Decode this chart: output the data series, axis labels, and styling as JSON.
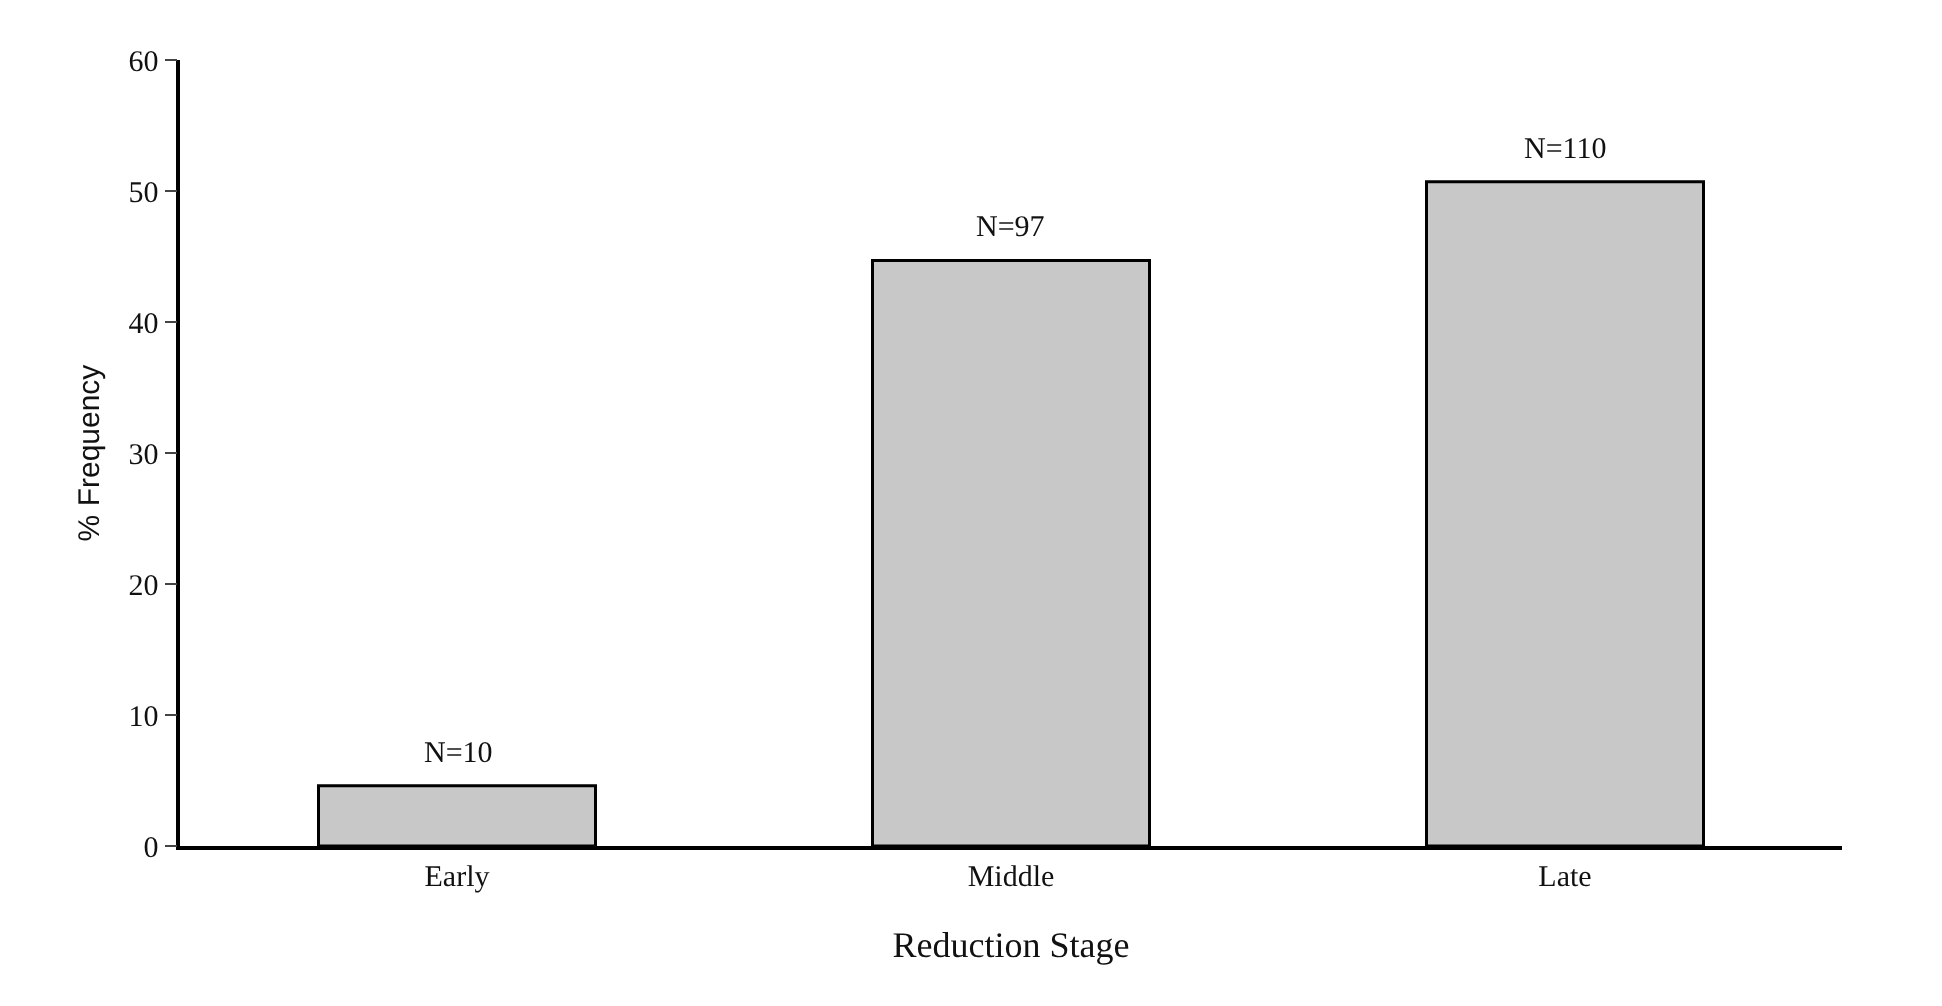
{
  "chart_data": {
    "type": "bar",
    "xlabel": "Reduction Stage",
    "ylabel": "% Frequency",
    "categories": [
      "Early",
      "Middle",
      "Late"
    ],
    "values": [
      4.6,
      44.7,
      50.7
    ],
    "annotations": [
      {
        "text": "N=10",
        "x": "Early",
        "y": 4.6
      },
      {
        "text": "N=97",
        "x": "Middle",
        "y": 44.7
      },
      {
        "text": "N=110",
        "x": "Late",
        "y": 50.7
      }
    ],
    "color": "#c8c8c8",
    "ylim": [
      0,
      60
    ],
    "yticks": [
      0,
      10,
      20,
      30,
      40,
      50,
      60
    ],
    "grid": false
  }
}
